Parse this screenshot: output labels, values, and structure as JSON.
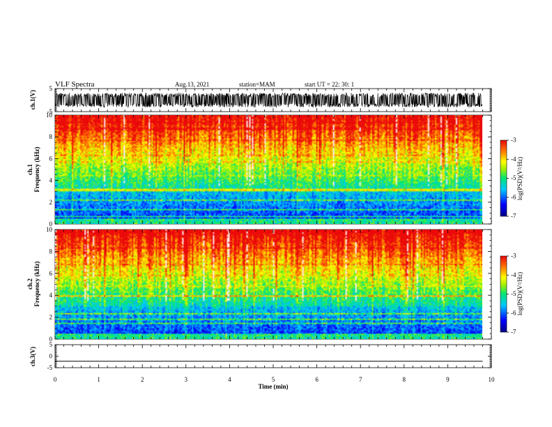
{
  "header": {
    "title": "VLF Spectra",
    "date": "Aug.13, 2021",
    "station": "station=MAM",
    "start_ut": "start  UT  =   22: 30: 1"
  },
  "panels": {
    "ch1_wave_label": "ch.1(V)",
    "ch1_spec_label1": "ch.1",
    "ch1_spec_label2": "Frequency (kHz)",
    "ch2_spec_label1": "ch.2",
    "ch2_spec_label2": "Frequency (kHz)",
    "ch3_wave_label": "ch.3(V)",
    "colorbar_label": "log(PSD)(V²/Hz)"
  },
  "chart_data": [
    {
      "type": "line",
      "name": "ch1-waveform",
      "ylabel": "ch.1(V)",
      "ylim": [
        -5,
        5
      ],
      "yticks": [
        "5",
        "-5"
      ],
      "xlim": [
        0,
        10
      ],
      "description_level": "dense noise filling roughly -3 to 3 V"
    },
    {
      "type": "heatmap",
      "name": "ch1-spectrogram",
      "ylabel": "Frequency (kHz)",
      "ylim": [
        0,
        10
      ],
      "yticks": [
        "0",
        "2",
        "4",
        "6",
        "8",
        "10"
      ],
      "xlim": [
        0,
        10
      ],
      "colorbar": {
        "label": "log(PSD)(V²/Hz)",
        "range": [
          -7,
          -3
        ],
        "ticks": [
          "-3",
          "-4",
          "-5",
          "-6",
          "-7"
        ]
      }
    },
    {
      "type": "heatmap",
      "name": "ch2-spectrogram",
      "ylabel": "Frequency (kHz)",
      "ylim": [
        0,
        10
      ],
      "yticks": [
        "0",
        "2",
        "4",
        "6",
        "8",
        "10"
      ],
      "xlim": [
        0,
        10
      ],
      "colorbar": {
        "label": "log(PSD)(V²/Hz)",
        "range": [
          -7,
          -3
        ],
        "ticks": [
          "-3",
          "-4",
          "-5",
          "-6",
          "-7"
        ]
      }
    },
    {
      "type": "line",
      "name": "ch3-waveform",
      "ylabel": "ch.3(V)",
      "ylim": [
        -5,
        5
      ],
      "yticks": [
        "5",
        "0",
        "-5"
      ],
      "x": [
        0,
        9.8
      ],
      "y": [
        -2.2,
        -2.2
      ],
      "xlim": [
        0,
        10
      ],
      "xticks": [
        "0",
        "1",
        "2",
        "3",
        "4",
        "5",
        "6",
        "7",
        "8",
        "9",
        "10"
      ],
      "xlabel": "Time (min)"
    }
  ]
}
